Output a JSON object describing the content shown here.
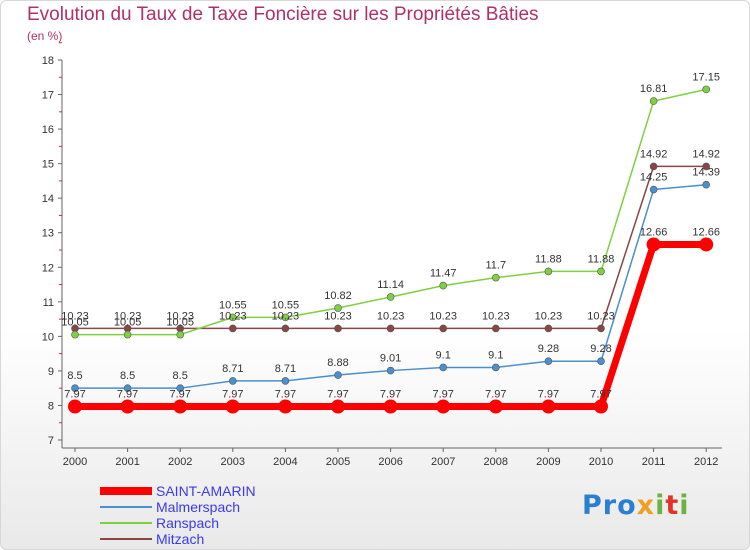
{
  "chart_data": {
    "type": "line",
    "title": "Evolution du Taux de Taxe Foncière sur les Propriétés Bâties",
    "subtitle": "(en %)",
    "categories": [
      "2000",
      "2001",
      "2002",
      "2003",
      "2004",
      "2005",
      "2006",
      "2007",
      "2008",
      "2009",
      "2010",
      "2011",
      "2012"
    ],
    "ylim": [
      7,
      18
    ],
    "yticks": [
      7,
      8,
      9,
      10,
      11,
      12,
      13,
      14,
      15,
      16,
      17,
      18
    ],
    "grid": false,
    "legend_position": "bottom-left",
    "series": [
      {
        "name": "SAINT-AMARIN",
        "color": "#ff0000",
        "values": [
          7.97,
          7.97,
          7.97,
          7.97,
          7.97,
          7.97,
          7.97,
          7.97,
          7.97,
          7.97,
          7.97,
          12.66,
          12.66
        ],
        "labels": [
          "7.97",
          "7.97",
          "7.97",
          "7.97",
          "7.97",
          "7.97",
          "7.97",
          "7.97",
          "7.97",
          "7.97",
          "7.97",
          "12.66",
          "12.66"
        ]
      },
      {
        "name": "Malmerspach",
        "color": "#4a8fce",
        "values": [
          8.5,
          8.5,
          8.5,
          8.71,
          8.71,
          8.88,
          9.01,
          9.1,
          9.1,
          9.28,
          9.28,
          14.25,
          14.39
        ],
        "labels": [
          "8.5",
          "8.5",
          "8.5",
          "8.71",
          "8.71",
          "8.88",
          "9.01",
          "9.1",
          "9.1",
          "9.28",
          "9.28",
          "14.25",
          "14.39"
        ]
      },
      {
        "name": "Ranspach",
        "color": "#7fd040",
        "values": [
          10.05,
          10.05,
          10.05,
          10.55,
          10.55,
          10.82,
          11.14,
          11.47,
          11.7,
          11.88,
          11.88,
          16.81,
          17.15
        ],
        "labels": [
          "10.05",
          "10.05",
          "10.05",
          "10.55",
          "10.55",
          "10.82",
          "11.14",
          "11.47",
          "11.7",
          "11.88",
          "11.88",
          "16.81",
          "17.15"
        ]
      },
      {
        "name": "Mitzach",
        "color": "#8a4545",
        "values": [
          10.23,
          10.23,
          10.23,
          10.23,
          10.23,
          10.23,
          10.23,
          10.23,
          10.23,
          10.23,
          10.23,
          14.92,
          14.92
        ],
        "labels": [
          "10.23",
          "10.23",
          "10.23",
          "10.23",
          "10.23",
          "10.23",
          "10.23",
          "10.23",
          "10.23",
          "10.23",
          "10.23",
          "14.92",
          "14.92"
        ]
      }
    ]
  },
  "logo": {
    "p1": "Pro",
    "p2": "x",
    "p3": "i",
    "p4": "t",
    "p5": "i"
  }
}
